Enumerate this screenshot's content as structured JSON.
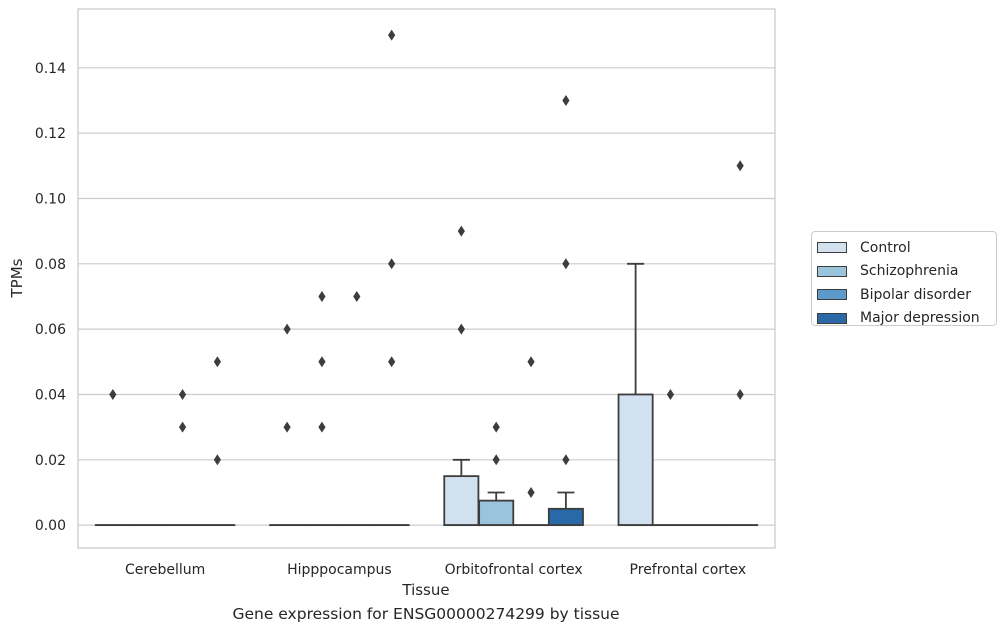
{
  "chart_data": {
    "type": "box",
    "title": "",
    "caption": "Gene expression for ENSG00000274299 by tissue",
    "xlabel": "Tissue",
    "ylabel": "TPMs",
    "ylim": [
      -0.007,
      0.158
    ],
    "yticks": [
      0.0,
      0.02,
      0.04,
      0.06,
      0.08,
      0.1,
      0.12,
      0.14
    ],
    "ytick_labels": [
      "0.00",
      "0.02",
      "0.04",
      "0.06",
      "0.08",
      "0.10",
      "0.12",
      "0.14"
    ],
    "grid": "horizontal",
    "legend_position": "right",
    "categories": [
      "Cerebellum",
      "Hipppocampus",
      "Orbitofrontal cortex",
      "Prefrontal cortex"
    ],
    "series": [
      {
        "name": "Control",
        "color": "#d1e1ef",
        "boxes": [
          {
            "q1": 0,
            "median": 0,
            "q3": 0,
            "whisker_low": 0,
            "whisker_high": 0,
            "outliers": [
              0.04
            ]
          },
          {
            "q1": 0,
            "median": 0,
            "q3": 0,
            "whisker_low": 0,
            "whisker_high": 0,
            "outliers": [
              0.03,
              0.06
            ]
          },
          {
            "q1": 0,
            "median": 0,
            "q3": 0.015,
            "whisker_low": 0,
            "whisker_high": 0.02,
            "outliers": [
              0.06,
              0.09
            ]
          },
          {
            "q1": 0,
            "median": 0,
            "q3": 0.04,
            "whisker_low": 0,
            "whisker_high": 0.08,
            "outliers": []
          }
        ]
      },
      {
        "name": "Schizophrenia",
        "color": "#9ac3dc",
        "boxes": [
          {
            "q1": 0,
            "median": 0,
            "q3": 0,
            "whisker_low": 0,
            "whisker_high": 0,
            "outliers": []
          },
          {
            "q1": 0,
            "median": 0,
            "q3": 0,
            "whisker_low": 0,
            "whisker_high": 0,
            "outliers": [
              0.03,
              0.05,
              0.07
            ]
          },
          {
            "q1": 0,
            "median": 0,
            "q3": 0.0075,
            "whisker_low": 0,
            "whisker_high": 0.01,
            "outliers": [
              0.02,
              0.03
            ]
          },
          {
            "q1": 0,
            "median": 0,
            "q3": 0,
            "whisker_low": 0,
            "whisker_high": 0,
            "outliers": [
              0.04
            ]
          }
        ]
      },
      {
        "name": "Bipolar disorder",
        "color": "#5b9ac9",
        "boxes": [
          {
            "q1": 0,
            "median": 0,
            "q3": 0,
            "whisker_low": 0,
            "whisker_high": 0,
            "outliers": [
              0.03,
              0.04
            ]
          },
          {
            "q1": 0,
            "median": 0,
            "q3": 0,
            "whisker_low": 0,
            "whisker_high": 0,
            "outliers": [
              0.07
            ]
          },
          {
            "q1": 0,
            "median": 0,
            "q3": 0,
            "whisker_low": 0,
            "whisker_high": 0,
            "outliers": [
              0.01,
              0.05
            ]
          },
          {
            "q1": 0,
            "median": 0,
            "q3": 0,
            "whisker_low": 0,
            "whisker_high": 0,
            "outliers": []
          }
        ]
      },
      {
        "name": "Major depression",
        "color": "#2a69a8",
        "boxes": [
          {
            "q1": 0,
            "median": 0,
            "q3": 0,
            "whisker_low": 0,
            "whisker_high": 0,
            "outliers": [
              0.02,
              0.05
            ]
          },
          {
            "q1": 0,
            "median": 0,
            "q3": 0,
            "whisker_low": 0,
            "whisker_high": 0,
            "outliers": [
              0.05,
              0.08,
              0.15
            ]
          },
          {
            "q1": 0,
            "median": 0,
            "q3": 0.005,
            "whisker_low": 0,
            "whisker_high": 0.01,
            "outliers": [
              0.02,
              0.08,
              0.13
            ]
          },
          {
            "q1": 0,
            "median": 0,
            "q3": 0,
            "whisker_low": 0,
            "whisker_high": 0,
            "outliers": [
              0.04,
              0.11
            ]
          }
        ]
      }
    ]
  }
}
